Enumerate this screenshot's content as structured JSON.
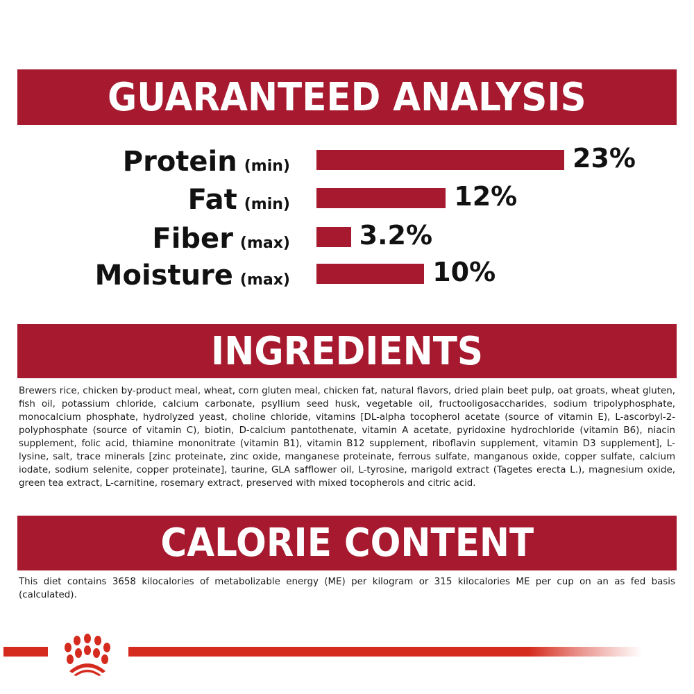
{
  "guaranteed_analysis": {
    "title": "GUARANTEED ANALYSIS",
    "rows": [
      {
        "name": "Protein",
        "qualifier": "(min)",
        "value": "23%",
        "percent": 23
      },
      {
        "name": "Fat",
        "qualifier": "(min)",
        "value": "12%",
        "percent": 12
      },
      {
        "name": "Fiber",
        "qualifier": "(max)",
        "value": "3.2%",
        "percent": 3.2
      },
      {
        "name": "Moisture",
        "qualifier": "(max)",
        "value": "10%",
        "percent": 10
      }
    ]
  },
  "ingredients": {
    "title": "INGREDIENTS",
    "text": "Brewers rice, chicken by-product meal, wheat, corn gluten meal, chicken fat, natural flavors, dried plain beet pulp, oat groats, wheat gluten, fish oil, potassium chloride, calcium carbonate, psyllium seed husk, vegetable oil, fructooligosaccharides, sodium tripolyphosphate, monocalcium phosphate, hydrolyzed yeast, choline chloride, vitamins [DL-alpha tocopherol acetate (source of vitamin E), L-ascorbyl-2-polyphosphate (source of vitamin C), biotin, D-calcium pantothenate, vitamin A acetate, pyridoxine hydrochloride (vitamin B6), niacin supplement, folic acid, thiamine mononitrate (vitamin B1), vitamin B12 supplement, riboflavin supplement, vitamin D3 supplement], L-lysine, salt, trace minerals [zinc proteinate, zinc oxide, manganese proteinate, ferrous sulfate, manganous oxide, copper sulfate, calcium iodate, sodium selenite, copper proteinate], taurine, GLA safflower oil, L-tyrosine, marigold extract (Tagetes erecta L.), magnesium oxide, green tea extract, L-carnitine, rosemary extract, preserved with mixed tocopherols and citric acid."
  },
  "calorie_content": {
    "title": "CALORIE CONTENT",
    "text": "This diet contains 3658 kilocalories of metabolizable energy (ME) per kilogram or 315 kilocalories ME per cup on an as fed basis (calculated)."
  },
  "colors": {
    "header": "#a6192e",
    "bar": "#a6192e",
    "brand_line": "#d52b1e"
  },
  "logo": {
    "icon": "royal-canin-crown-logo"
  }
}
